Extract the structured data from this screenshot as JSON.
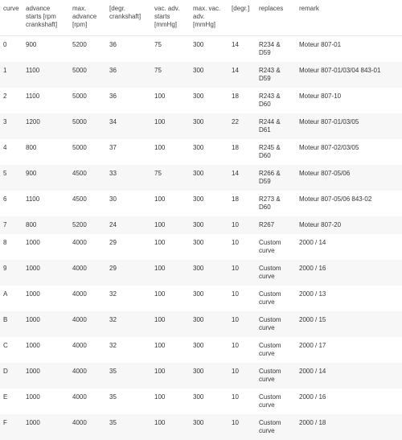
{
  "headers": {
    "curve": "curve",
    "advstart": "advance starts [rpm crankshaft]",
    "maxadv": "max. advance [rpm]",
    "degr": "[degr. crankshaft]",
    "vacstart": "vac. adv. starts [mmHg]",
    "maxvac": "max. vac. adv. [mmHg]",
    "degr2": "[degr.]",
    "replaces": "replaces",
    "remark": "remark"
  },
  "rows": [
    {
      "curve": "0",
      "advstart": "900",
      "maxadv": "5200",
      "degr": "36",
      "vacstart": "75",
      "maxvac": "300",
      "degr2": "14",
      "replaces": "R234 & D59",
      "remark": "Moteur 807-01"
    },
    {
      "curve": "1",
      "advstart": "1100",
      "maxadv": "5000",
      "degr": "36",
      "vacstart": "75",
      "maxvac": "300",
      "degr2": "14",
      "replaces": "R243 & D59",
      "remark": "Moteur 807-01/03/04 843-01"
    },
    {
      "curve": "2",
      "advstart": "1100",
      "maxadv": "5000",
      "degr": "36",
      "vacstart": "100",
      "maxvac": "300",
      "degr2": "18",
      "replaces": "R243 & D60",
      "remark": "Moteur 807-10"
    },
    {
      "curve": "3",
      "advstart": "1200",
      "maxadv": "5000",
      "degr": "34",
      "vacstart": "100",
      "maxvac": "300",
      "degr2": "22",
      "replaces": "R244 & D61",
      "remark": "Moteur 807-01/03/05"
    },
    {
      "curve": "4",
      "advstart": "800",
      "maxadv": "5000",
      "degr": "37",
      "vacstart": "100",
      "maxvac": "300",
      "degr2": "18",
      "replaces": "R245 & D60",
      "remark": "Moteur 807-02/03/05"
    },
    {
      "curve": "5",
      "advstart": "900",
      "maxadv": "4500",
      "degr": "33",
      "vacstart": "75",
      "maxvac": "300",
      "degr2": "14",
      "replaces": "R266 & D59",
      "remark": "Moteur 807-05/06"
    },
    {
      "curve": "6",
      "advstart": "1100",
      "maxadv": "4500",
      "degr": "30",
      "vacstart": "100",
      "maxvac": "300",
      "degr2": "18",
      "replaces": "R273 & D60",
      "remark": "Moteur 807-05/06 843-02"
    },
    {
      "curve": "7",
      "advstart": "800",
      "maxadv": "5200",
      "degr": "24",
      "vacstart": "100",
      "maxvac": "300",
      "degr2": "10",
      "replaces": "R267",
      "remark": "Moteur 807-20"
    },
    {
      "curve": "8",
      "advstart": "1000",
      "maxadv": "4000",
      "degr": "29",
      "vacstart": "100",
      "maxvac": "300",
      "degr2": "10",
      "replaces": "Custom curve",
      "remark": "2000 / 14"
    },
    {
      "curve": "9",
      "advstart": "1000",
      "maxadv": "4000",
      "degr": "29",
      "vacstart": "100",
      "maxvac": "300",
      "degr2": "10",
      "replaces": "Custom curve",
      "remark": "2000 / 16"
    },
    {
      "curve": "A",
      "advstart": "1000",
      "maxadv": "4000",
      "degr": "32",
      "vacstart": "100",
      "maxvac": "300",
      "degr2": "10",
      "replaces": "Custom curve",
      "remark": "2000 / 13"
    },
    {
      "curve": "B",
      "advstart": "1000",
      "maxadv": "4000",
      "degr": "32",
      "vacstart": "100",
      "maxvac": "300",
      "degr2": "10",
      "replaces": "Custom curve",
      "remark": "2000 / 15"
    },
    {
      "curve": "C",
      "advstart": "1000",
      "maxadv": "4000",
      "degr": "32",
      "vacstart": "100",
      "maxvac": "300",
      "degr2": "10",
      "replaces": "Custom curve",
      "remark": "2000 / 17"
    },
    {
      "curve": "D",
      "advstart": "1000",
      "maxadv": "4000",
      "degr": "35",
      "vacstart": "100",
      "maxvac": "300",
      "degr2": "10",
      "replaces": "Custom curve",
      "remark": "2000 / 14"
    },
    {
      "curve": "E",
      "advstart": "1000",
      "maxadv": "4000",
      "degr": "35",
      "vacstart": "100",
      "maxvac": "300",
      "degr2": "10",
      "replaces": "Custom curve",
      "remark": "2000 / 16"
    },
    {
      "curve": "F",
      "advstart": "1000",
      "maxadv": "4000",
      "degr": "35",
      "vacstart": "100",
      "maxvac": "300",
      "degr2": "10",
      "replaces": "Custom curve",
      "remark": "2000 / 18"
    }
  ]
}
